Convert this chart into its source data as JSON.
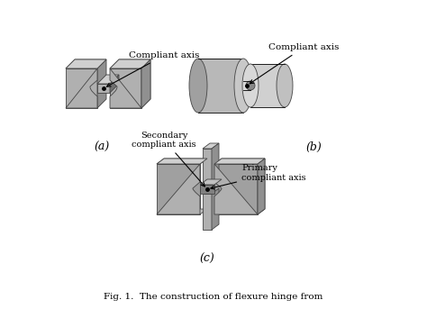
{
  "title": "",
  "background_color": "#ffffff",
  "fig_width": 4.74,
  "fig_height": 3.43,
  "dpi": 100,
  "label_a": "(a)",
  "label_b": "(b)",
  "label_c": "(c)",
  "caption": "Fig. 1. The construction of flexure hinge from",
  "gray_light": "#c8c8c8",
  "gray_mid": "#a8a8a8",
  "gray_dark": "#888888",
  "gray_darker": "#606060",
  "text_color": "#000000",
  "arrow_color": "#000000",
  "font_size_label": 8,
  "font_size_caption": 7,
  "font_size_axis_label": 7.5
}
